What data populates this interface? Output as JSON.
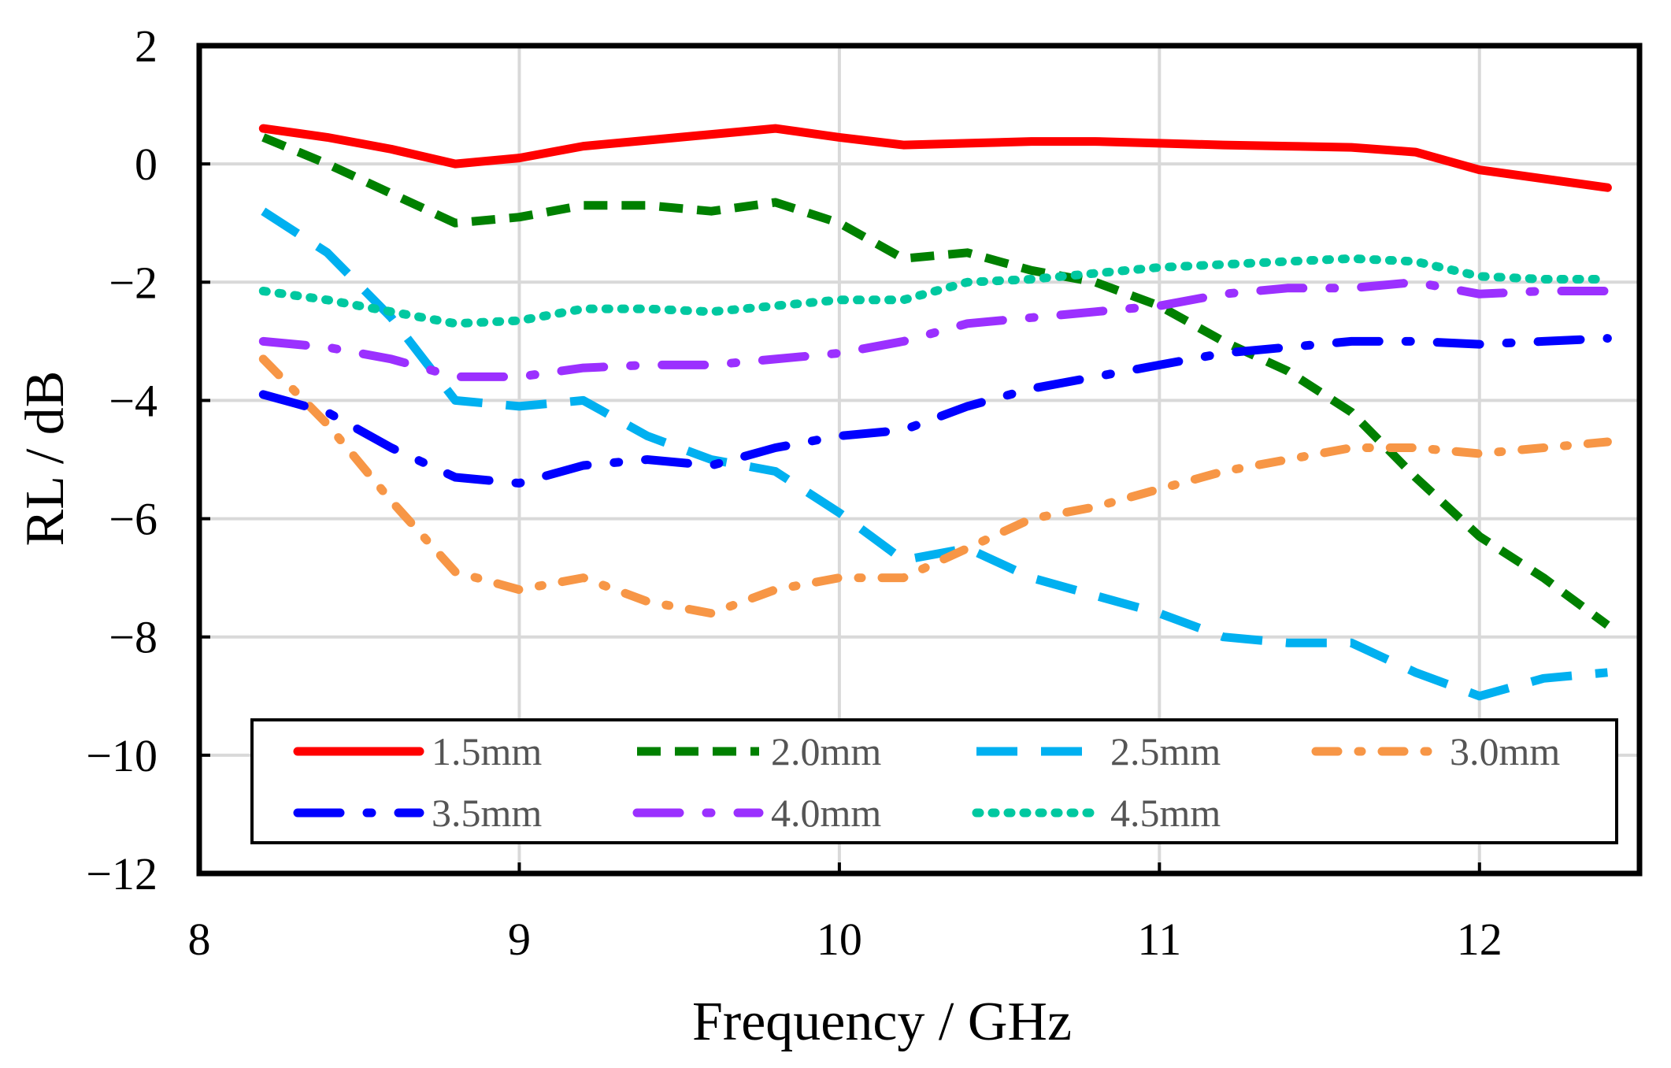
{
  "chart_data": {
    "type": "line",
    "xlabel": "Frequency / GHz",
    "ylabel": "RL / dB",
    "xlim": [
      8,
      12.5
    ],
    "ylim": [
      -12,
      2
    ],
    "xticks": [
      8,
      9,
      10,
      11,
      12
    ],
    "xtick_labels": [
      "8",
      "9",
      "10",
      "11",
      "12"
    ],
    "yticks": [
      2,
      0,
      -2,
      -4,
      -6,
      -8,
      -10,
      -12
    ],
    "ytick_labels": [
      "2",
      "0",
      "−2",
      "−4",
      "−6",
      "−8",
      "−10",
      "−12"
    ],
    "grid": true,
    "legend_position": "bottom",
    "x": [
      8.2,
      8.4,
      8.6,
      8.8,
      9.0,
      9.2,
      9.4,
      9.6,
      9.8,
      10.0,
      10.2,
      10.4,
      10.6,
      10.8,
      11.0,
      11.2,
      11.4,
      11.6,
      11.8,
      12.0,
      12.2,
      12.4
    ],
    "series": [
      {
        "name": "1.5mm",
        "color": "#ff0000",
        "dash": "solid",
        "values": [
          0.6,
          0.45,
          0.25,
          0.0,
          0.1,
          0.3,
          0.4,
          0.5,
          0.6,
          0.45,
          0.32,
          0.35,
          0.38,
          0.38,
          0.35,
          0.32,
          0.3,
          0.28,
          0.2,
          -0.1,
          -0.25,
          -0.4
        ]
      },
      {
        "name": "2.0mm",
        "color": "#008000",
        "dash": "dash",
        "values": [
          0.45,
          0.0,
          -0.5,
          -1.0,
          -0.9,
          -0.7,
          -0.7,
          -0.8,
          -0.65,
          -1.0,
          -1.6,
          -1.5,
          -1.8,
          -2.0,
          -2.4,
          -3.0,
          -3.5,
          -4.2,
          -5.3,
          -6.3,
          -7.0,
          -7.8
        ]
      },
      {
        "name": "2.5mm",
        "color": "#00b0f0",
        "dash": "longdash",
        "values": [
          -0.8,
          -1.5,
          -2.6,
          -4.0,
          -4.1,
          -4.0,
          -4.6,
          -5.0,
          -5.2,
          -5.9,
          -6.7,
          -6.5,
          -7.0,
          -7.3,
          -7.6,
          -8.0,
          -8.1,
          -8.1,
          -8.6,
          -9.0,
          -8.7,
          -8.6
        ]
      },
      {
        "name": "3.0mm",
        "color": "#f79646",
        "dash": "dashdot",
        "values": [
          -3.3,
          -4.4,
          -5.7,
          -6.9,
          -7.2,
          -7.0,
          -7.4,
          -7.6,
          -7.2,
          -7.0,
          -7.0,
          -6.5,
          -6.0,
          -5.8,
          -5.5,
          -5.2,
          -5.0,
          -4.8,
          -4.8,
          -4.9,
          -4.8,
          -4.7
        ]
      },
      {
        "name": "3.5mm",
        "color": "#0000ff",
        "dash": "longdashdot",
        "values": [
          -3.9,
          -4.2,
          -4.8,
          -5.3,
          -5.4,
          -5.1,
          -5.0,
          -5.1,
          -4.8,
          -4.6,
          -4.5,
          -4.1,
          -3.8,
          -3.6,
          -3.4,
          -3.2,
          -3.1,
          -3.0,
          -3.0,
          -3.05,
          -3.0,
          -2.95
        ]
      },
      {
        "name": "4.0mm",
        "color": "#9b30ff",
        "dash": "longdashdot",
        "values": [
          -3.0,
          -3.1,
          -3.3,
          -3.6,
          -3.6,
          -3.45,
          -3.4,
          -3.4,
          -3.3,
          -3.2,
          -3.0,
          -2.7,
          -2.6,
          -2.5,
          -2.4,
          -2.2,
          -2.1,
          -2.1,
          -2.0,
          -2.2,
          -2.15,
          -2.15
        ]
      },
      {
        "name": "4.5mm",
        "color": "#00c8a0",
        "dash": "dot",
        "values": [
          -2.15,
          -2.3,
          -2.5,
          -2.7,
          -2.65,
          -2.45,
          -2.45,
          -2.5,
          -2.4,
          -2.3,
          -2.3,
          -2.0,
          -1.95,
          -1.85,
          -1.75,
          -1.7,
          -1.65,
          -1.6,
          -1.65,
          -1.9,
          -1.95,
          -1.95
        ]
      }
    ]
  }
}
